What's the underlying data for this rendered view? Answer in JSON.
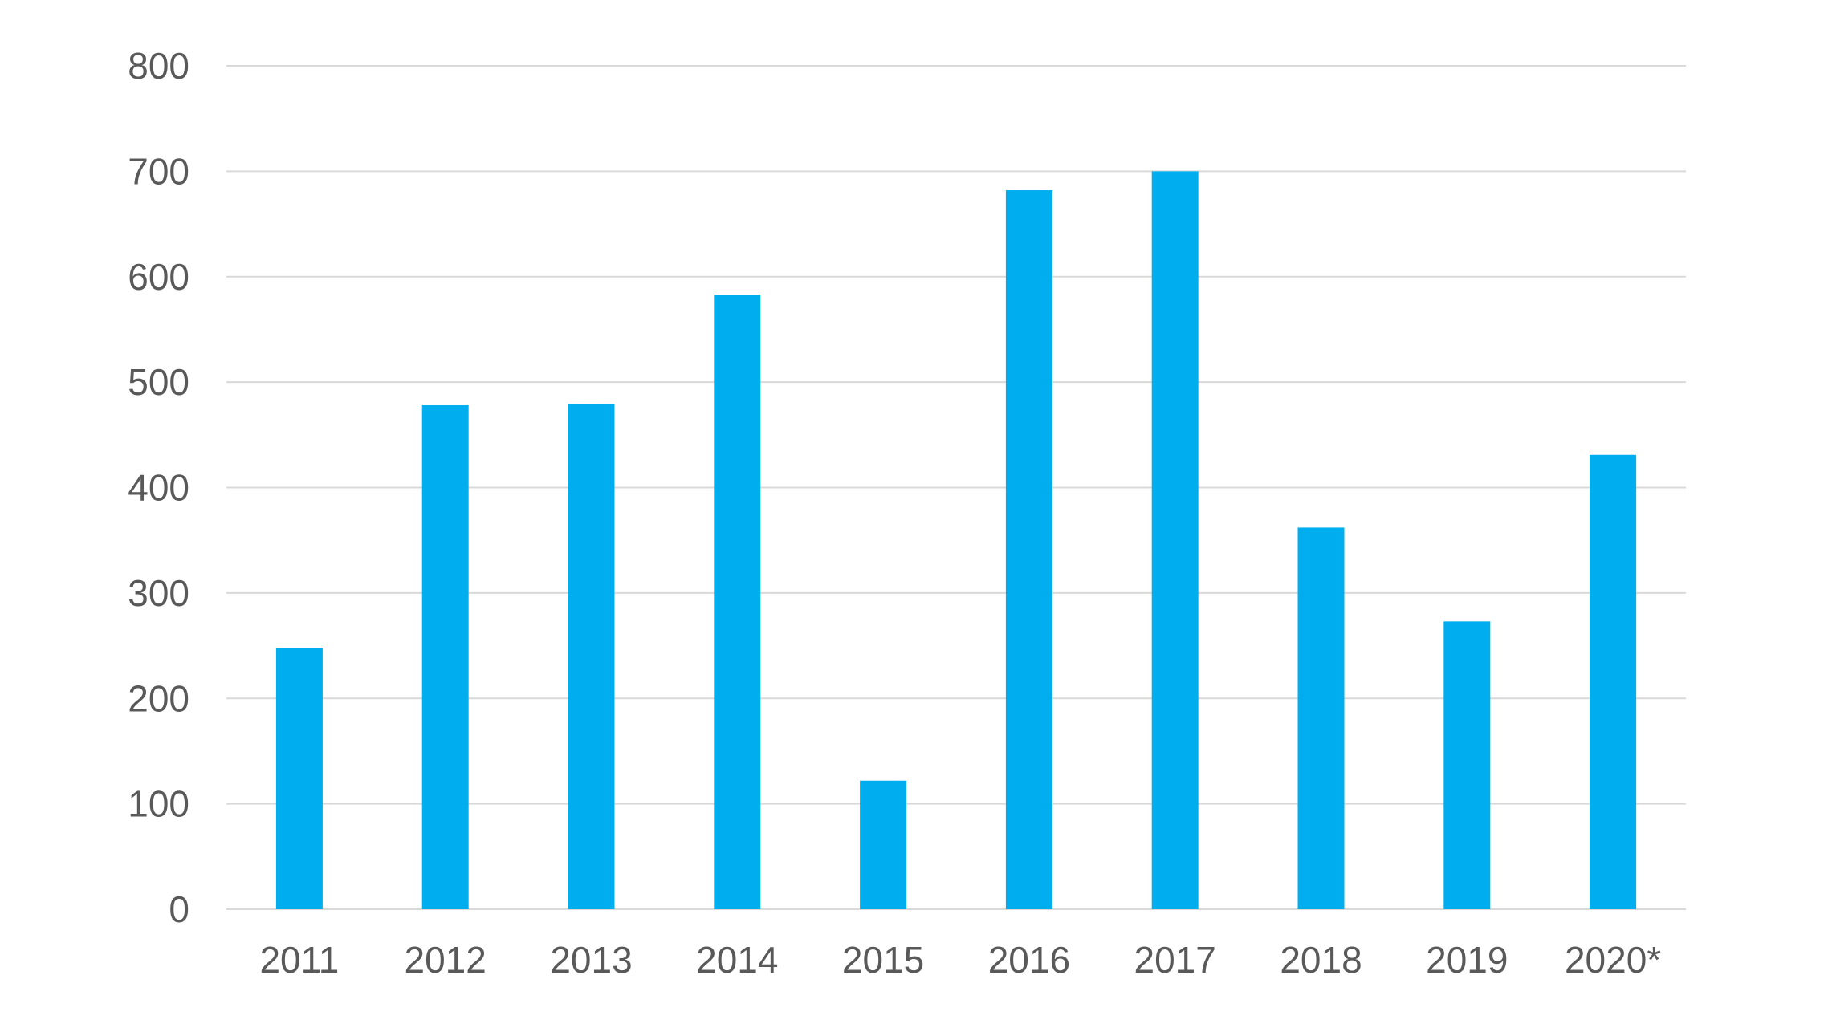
{
  "chart_data": {
    "type": "bar",
    "categories": [
      "2011",
      "2012",
      "2013",
      "2014",
      "2015",
      "2016",
      "2017",
      "2018",
      "2019",
      "2020*"
    ],
    "values": [
      248,
      478,
      479,
      583,
      122,
      682,
      700,
      362,
      273,
      431
    ],
    "title": "",
    "xlabel": "",
    "ylabel": "",
    "ylim": [
      0,
      800
    ],
    "yticks": [
      0,
      100,
      200,
      300,
      400,
      500,
      600,
      700,
      800
    ],
    "ytick_labels": [
      "0",
      "100",
      "200",
      "300",
      "400",
      "500",
      "600",
      "700",
      "800"
    ],
    "grid": true,
    "legend": "none",
    "bar_color": "#00aeef"
  }
}
